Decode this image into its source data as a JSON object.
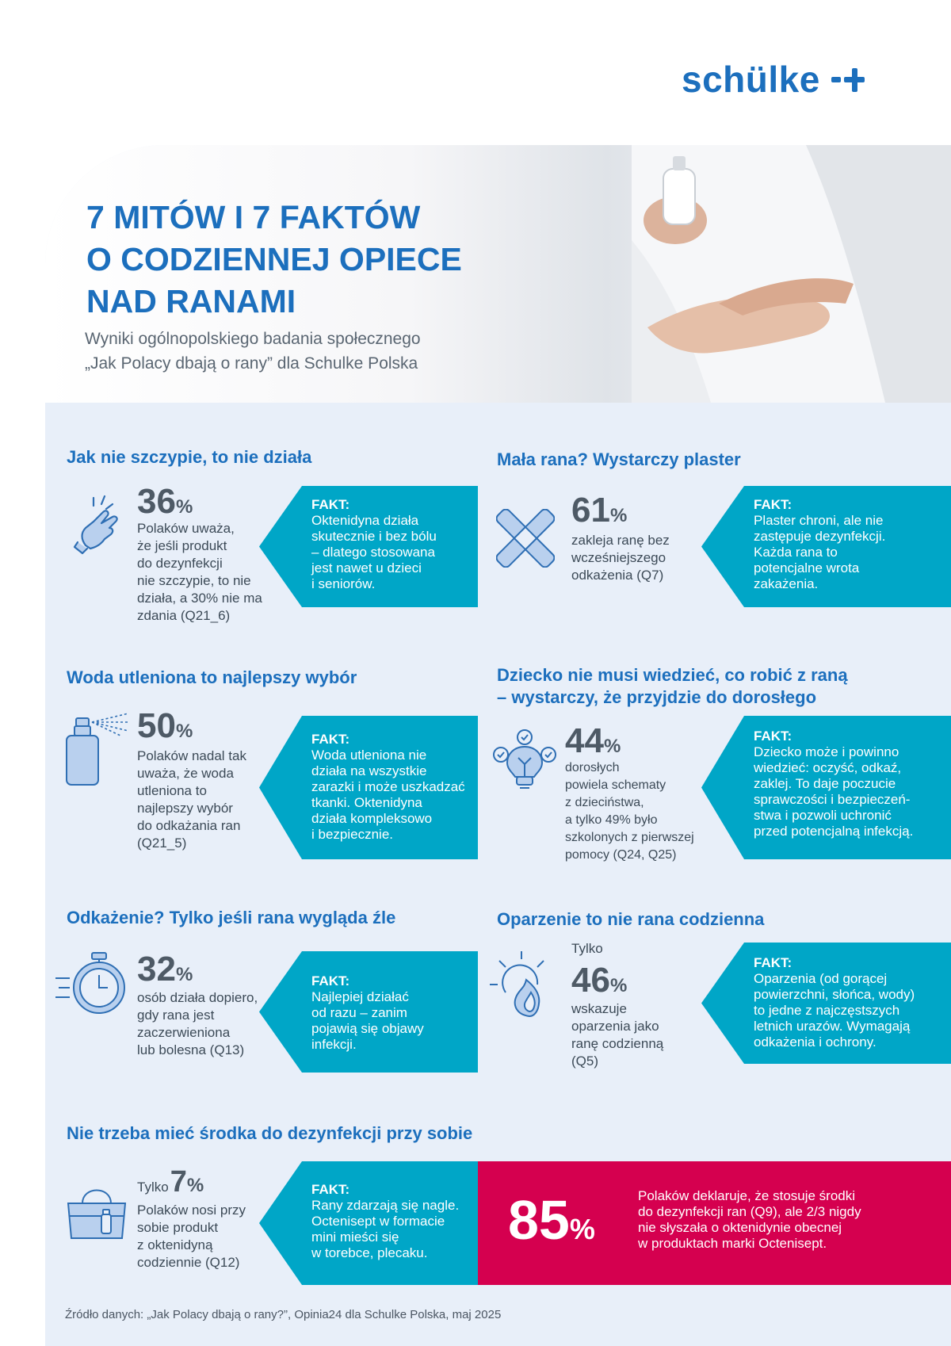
{
  "brand": {
    "name": "schülke"
  },
  "header": {
    "title_lines": [
      "7 MITÓW I 7 FAKTÓW",
      "O CODZIENNEJ OPIECE",
      "NAD RANAMI"
    ],
    "subtitle_lines": [
      "Wyniki ogólnopolskiego badania społecznego",
      "„Jak Polacy dbają o rany” dla Schulke Polska"
    ]
  },
  "myths": [
    {
      "title_lines": [
        "Jak nie szczypie, to nie działa"
      ],
      "icon": "hand-icon",
      "pre": "",
      "value": "36",
      "unit": "%",
      "desc_lines": [
        "Polaków uważa,",
        "że jeśli produkt",
        "do dezynfekcji",
        "nie szczypie, to nie",
        "działa, a 30% nie ma",
        "zdania (Q21_6)"
      ],
      "fact_label": "FAKT:",
      "fact_lines": [
        "Oktenidyna działa",
        "skutecznie i bez bólu",
        "– dlatego stosowana",
        "jest nawet u dzieci",
        "i seniorów."
      ]
    },
    {
      "title_lines": [
        "Mała rana? Wystarczy plaster"
      ],
      "icon": "bandage-icon",
      "pre": "",
      "value": "61",
      "unit": "%",
      "desc_lines": [
        "zakleja ranę bez",
        "wcześniejszego",
        "odkażenia (Q7)"
      ],
      "fact_label": "FAKT:",
      "fact_lines": [
        "Plaster chroni, ale nie",
        "zastępuje dezynfekcji.",
        "Każda rana to",
        "potencjalne wrota",
        "zakażenia."
      ]
    },
    {
      "title_lines": [
        "Woda utleniona to najlepszy wybór"
      ],
      "icon": "spray-bottle-icon",
      "pre": "",
      "value": "50",
      "unit": "%",
      "desc_lines": [
        "Polaków nadal tak",
        "uważa, że woda",
        "utleniona to",
        "najlepszy wybór",
        "do odkażania ran",
        "(Q21_5)"
      ],
      "fact_label": "FAKT:",
      "fact_lines": [
        "Woda utleniona nie",
        "działa na wszystkie",
        "zarazki i może uszkadzać",
        "tkanki. Oktenidyna",
        "działa kompleksowo",
        "i bezpiecznie."
      ]
    },
    {
      "title_lines": [
        "Dziecko nie musi wiedzieć, co robić z raną",
        "– wystarczy, że przyjdzie do dorosłego"
      ],
      "icon": "lightbulb-checks-icon",
      "pre": "",
      "value": "44",
      "unit": "%",
      "desc_lines": [
        "dorosłych",
        "powiela schematy",
        "z dzieciństwa,",
        "a tylko 49% było",
        "szkolonych z pierwszej",
        "pomocy (Q24, Q25)"
      ],
      "fact_label": "FAKT:",
      "fact_lines": [
        "Dziecko może i powinno",
        "wiedzieć: oczyść, odkaź,",
        "zaklej. To daje poczucie",
        "sprawczości i bezpieczeń-",
        "stwa i pozwoli uchronić",
        "przed potencjalną infekcją."
      ]
    },
    {
      "title_lines": [
        "Odkażenie? Tylko jeśli rana wygląda źle"
      ],
      "icon": "stopwatch-icon",
      "pre": "",
      "value": "32",
      "unit": "%",
      "desc_lines": [
        "osób działa dopiero,",
        "gdy rana jest",
        "zaczerwieniona",
        "lub bolesna (Q13)"
      ],
      "fact_label": "FAKT:",
      "fact_lines": [
        "Najlepiej działać",
        "od razu – zanim",
        "pojawią się objawy",
        "infekcji."
      ]
    },
    {
      "title_lines": [
        "Oparzenie to nie rana codzienna"
      ],
      "icon": "sun-flame-icon",
      "pre": "Tylko",
      "value": "46",
      "unit": "%",
      "desc_lines": [
        "wskazuje",
        "oparzenia jako",
        "ranę codzienną",
        "(Q5)"
      ],
      "fact_label": "FAKT:",
      "fact_lines": [
        "Oparzenia (od gorącej",
        "powierzchni, słońca, wody)",
        "to jedne z najczęstszych",
        "letnich urazów. Wymagają",
        "odkażenia i ochrony."
      ]
    },
    {
      "title_lines": [
        "Nie trzeba mieć środka do dezynfekcji przy sobie"
      ],
      "icon": "handbag-icon",
      "pre": "Tylko",
      "value": "7",
      "unit": "%",
      "desc_lines": [
        "Polaków nosi przy",
        "sobie produkt",
        "z oktenidyną",
        "codziennie (Q12)"
      ],
      "fact_label": "FAKT:",
      "fact_lines": [
        "Rany zdarzają się nagle.",
        "Octenisept w formacie",
        "mini mieści się",
        "w torebce, plecaku."
      ]
    }
  ],
  "highlight": {
    "value": "85",
    "unit": "%",
    "text_lines": [
      "Polaków deklaruje, że stosuje środki",
      "do dezynfekcji ran (Q9), ale 2/3 nigdy",
      "nie słyszała o oktenidynie obecnej",
      "w produktach marki Octenisept."
    ],
    "color": "#d5004f"
  },
  "source": "Źródło danych: „Jak Polacy dbają o rany?”, Opinia24 dla Schulke Polska, maj 2025",
  "colors": {
    "brand_blue": "#1c6fbd",
    "fact_teal": "#00a6c7",
    "panel_bg": "#e8eff9"
  }
}
